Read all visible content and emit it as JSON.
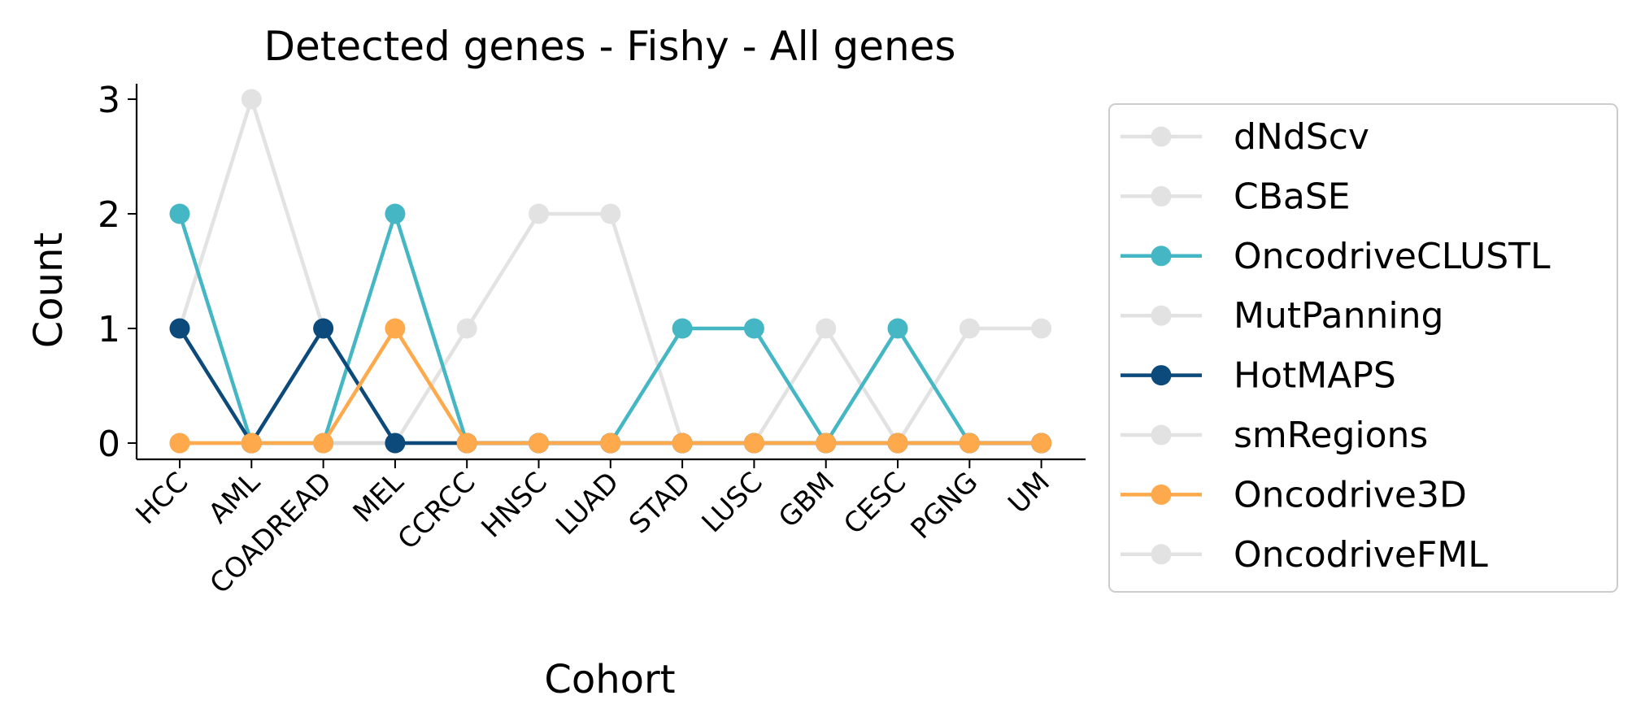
{
  "chart_data": {
    "type": "line",
    "title": "Detected genes - Fishy - All genes",
    "xlabel": "Cohort",
    "ylabel": "Count",
    "categories": [
      "HCC",
      "AML",
      "COADREAD",
      "MEL",
      "CCRCC",
      "HNSC",
      "LUAD",
      "STAD",
      "LUSC",
      "GBM",
      "CESC",
      "PGNG",
      "UM"
    ],
    "yticks": [
      0,
      1,
      2,
      3
    ],
    "ylim": [
      -0.15,
      3.15
    ],
    "legend_position": "right, outside plot",
    "series": [
      {
        "name": "dNdScv",
        "color": "#d9d9d9",
        "alpha": 0.75,
        "values": [
          1,
          3,
          1,
          0,
          1,
          2,
          2,
          0,
          0,
          1,
          0,
          1,
          1
        ]
      },
      {
        "name": "CBaSE",
        "color": "#d9d9d9",
        "alpha": 0.75,
        "values": [
          0,
          0,
          0,
          0,
          0,
          0,
          0,
          0,
          0,
          0,
          0,
          0,
          0
        ]
      },
      {
        "name": "OncodriveCLUSTL",
        "color": "#45b6c4",
        "alpha": 1,
        "values": [
          2,
          0,
          0,
          2,
          0,
          0,
          0,
          1,
          1,
          0,
          1,
          0,
          0
        ]
      },
      {
        "name": "MutPanning",
        "color": "#d9d9d9",
        "alpha": 0.75,
        "values": [
          0,
          0,
          0,
          0,
          0,
          0,
          0,
          0,
          0,
          0,
          0,
          0,
          0
        ]
      },
      {
        "name": "HotMAPS",
        "color": "#0b4a7a",
        "alpha": 1,
        "values": [
          1,
          0,
          1,
          0,
          0,
          0,
          0,
          0,
          0,
          0,
          0,
          0,
          0
        ]
      },
      {
        "name": "smRegions",
        "color": "#d9d9d9",
        "alpha": 0.75,
        "values": [
          0,
          0,
          0,
          0,
          0,
          0,
          0,
          0,
          0,
          0,
          0,
          0,
          0
        ]
      },
      {
        "name": "Oncodrive3D",
        "color": "#ffa94d",
        "alpha": 1,
        "values": [
          0,
          0,
          0,
          1,
          0,
          0,
          0,
          0,
          0,
          0,
          0,
          0,
          0
        ]
      },
      {
        "name": "OncodriveFML",
        "color": "#d9d9d9",
        "alpha": 0.75,
        "values": [
          0,
          0,
          0,
          0,
          0,
          0,
          0,
          0,
          0,
          0,
          0,
          0,
          0
        ]
      }
    ],
    "draw_order": [
      "dNdScv",
      "CBaSE",
      "MutPanning",
      "smRegions",
      "OncodriveFML",
      "OncodriveCLUSTL",
      "HotMAPS",
      "Oncodrive3D"
    ]
  }
}
